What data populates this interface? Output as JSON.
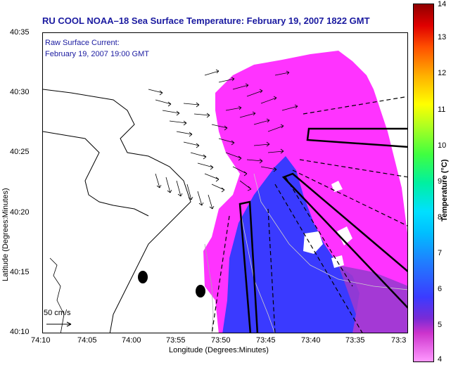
{
  "title": "RU COOL  NOAA–18  Sea Surface Temperature:  February 19, 2007 1822 GMT",
  "legend": {
    "line1": "Raw Surface Current:",
    "line2": "February 19, 2007 19:00 GMT"
  },
  "scale": {
    "label": "50 cm/s"
  },
  "axes": {
    "xlabel": "Longitude (Degrees:Minutes)",
    "ylabel": "Latitude (Degrees:Minutes)",
    "xticks": [
      "74:10",
      "74:05",
      "74:00",
      "73:55",
      "73:50",
      "73:45",
      "73:40",
      "73:35",
      "73:3"
    ],
    "yticks": [
      "40:35",
      "40:30",
      "40:25",
      "40:20",
      "40:15",
      "40:10"
    ]
  },
  "colorbar": {
    "label": "Temperature (°C)",
    "ticks": [
      "14",
      "13",
      "12",
      "11",
      "10",
      "9",
      "8",
      "7",
      "6",
      "5",
      "4"
    ]
  },
  "colors": {
    "title": "#1a1aa0",
    "warm_water": "#ff33ff",
    "cool_water": "#3333ff"
  }
}
